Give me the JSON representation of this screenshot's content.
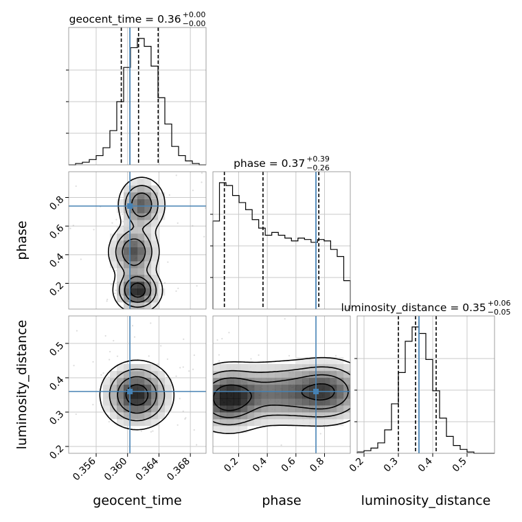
{
  "chart_data": {
    "type": "corner",
    "truth_color": "#4682b4",
    "parameters": [
      {
        "name": "geocent_time",
        "range": [
          0.3525,
          0.37
        ],
        "ticks": [
          0.356,
          0.36,
          0.364,
          0.368
        ],
        "tick_labels": [
          "0.356",
          "0.360",
          "0.364",
          "0.368"
        ],
        "truth": 0.3603,
        "quantiles": [
          0.3592,
          0.3614,
          0.3639
        ],
        "title": {
          "main": "geocent_time = 0.36",
          "sup": "+0.00",
          "sub": "−0.00"
        },
        "hist_bins": [
          0,
          1,
          2,
          4,
          7,
          13,
          26,
          48,
          74,
          89,
          96,
          90,
          75,
          51,
          31,
          14,
          7,
          3,
          1,
          0
        ]
      },
      {
        "name": "phase",
        "range": [
          0.02,
          0.98
        ],
        "ticks": [
          0.2,
          0.4,
          0.6,
          0.8
        ],
        "tick_labels": [
          "0.2",
          "0.4",
          "0.6",
          "0.8"
        ],
        "truth": 0.74,
        "quantiles": [
          0.1,
          0.37,
          0.76
        ],
        "title": {
          "main": "phase = 0.37",
          "sup": "+0.39",
          "sub": "−0.26"
        },
        "hist_bins": [
          62,
          89,
          87,
          80,
          75,
          70,
          63,
          57,
          52,
          54,
          52,
          50,
          48,
          50,
          49,
          47,
          49,
          48,
          42,
          37,
          20
        ]
      },
      {
        "name": "luminosity_distance",
        "range": [
          0.18,
          0.58
        ],
        "ticks": [
          0.2,
          0.3,
          0.4,
          0.5
        ],
        "tick_labels": [
          "0.2",
          "0.3",
          "0.4",
          "0.5"
        ],
        "truth": 0.36,
        "quantiles": [
          0.3,
          0.35,
          0.41
        ],
        "title": {
          "main": "luminosity_distance = 0.35",
          "sup": "+0.06",
          "sub": "−0.05"
        },
        "hist_bins": [
          1,
          2,
          4,
          8,
          18,
          38,
          62,
          86,
          97,
          92,
          72,
          48,
          27,
          13,
          6,
          3,
          1,
          0,
          0,
          0
        ]
      }
    ],
    "density_mode": "2d-kde-contours-with-scatter",
    "grid": true
  }
}
